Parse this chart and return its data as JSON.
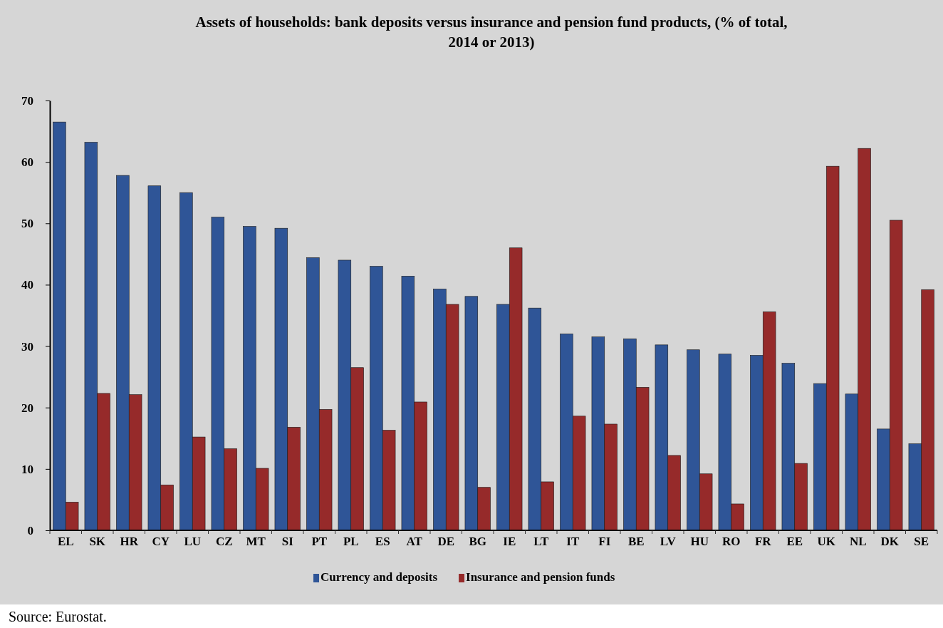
{
  "chart_data": {
    "type": "bar",
    "title": "Assets of households: bank deposits versus insurance and pension fund products, (% of total, 2014 or 2013)",
    "categories": [
      "EL",
      "SK",
      "HR",
      "CY",
      "LU",
      "CZ",
      "MT",
      "SI",
      "PT",
      "PL",
      "ES",
      "AT",
      "DE",
      "BG",
      "IE",
      "LT",
      "IT",
      "FI",
      "BE",
      "LV",
      "HU",
      "RO",
      "FR",
      "EE",
      "UK",
      "NL",
      "DK",
      "SE"
    ],
    "series": [
      {
        "name": "Currency and deposits",
        "color": "#2f5597",
        "values": [
          66.5,
          63.2,
          57.8,
          56.1,
          55,
          51,
          49.5,
          49.2,
          44.4,
          44,
          43,
          41.4,
          39.3,
          38.1,
          36.8,
          36.2,
          32,
          31.5,
          31.2,
          30.2,
          29.4,
          28.7,
          28.5,
          27.2,
          23.9,
          22.2,
          16.5,
          14.1
        ]
      },
      {
        "name": "Insurance and pension funds",
        "color": "#962a2a",
        "values": [
          4.6,
          22.3,
          22.1,
          7.4,
          15.2,
          13.3,
          10.1,
          16.8,
          19.7,
          26.5,
          16.3,
          20.9,
          36.8,
          7,
          46,
          7.9,
          18.6,
          17.3,
          23.3,
          12.2,
          9.2,
          4.3,
          35.6,
          10.9,
          59.3,
          62.2,
          50.5,
          39.2
        ]
      }
    ],
    "ylim": [
      0,
      70
    ],
    "yticks": [
      0,
      10,
      20,
      30,
      40,
      50,
      60,
      70
    ],
    "grid": false,
    "legend": "bottom",
    "annotations": [
      "Source: Eurostat."
    ]
  }
}
